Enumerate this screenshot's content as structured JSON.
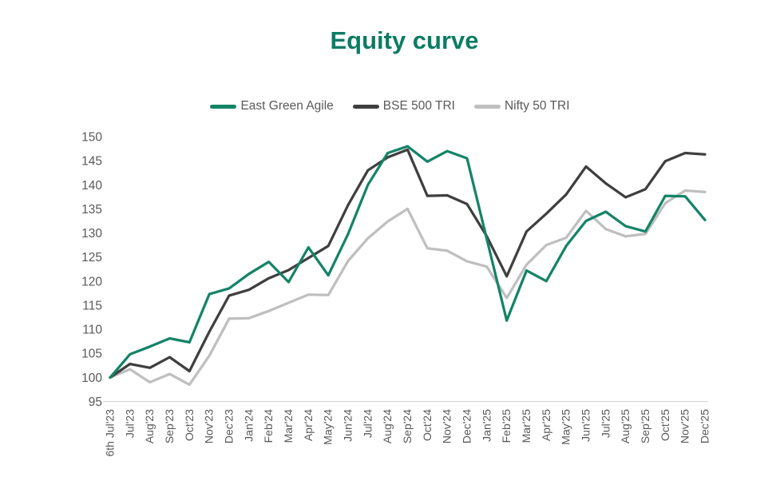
{
  "title": "Equity curve",
  "colors": {
    "title": "#0c7c64",
    "axis_text": "#595959",
    "axis_line": "#d9d9d9",
    "background": "#ffffff"
  },
  "chart_data": {
    "type": "line",
    "title": "Equity curve",
    "xlabel": "",
    "ylabel": "",
    "ylim": [
      95,
      150
    ],
    "y_ticks": [
      95,
      100,
      105,
      110,
      115,
      120,
      125,
      130,
      135,
      140,
      145,
      150
    ],
    "grid": false,
    "legend_position": "top",
    "x_labels": [
      "6th Jul'23",
      "Jul'23",
      "Aug'23",
      "Sep'23",
      "Oct'23",
      "Nov'23",
      "Dec'23",
      "Jan'24",
      "Feb'24",
      "Mar'24",
      "Apr'24",
      "May'24",
      "Jun'24",
      "Jul'24",
      "Aug'24",
      "Sep'24",
      "Oct'24",
      "Nov'24",
      "Dec'24",
      "Jan'25",
      "Feb'25",
      "Mar'25",
      "Apr'25",
      "May'25",
      "Jun'25",
      "Jul'25",
      "Aug'25",
      "Sep'25",
      "Oct'25",
      "Nov'25",
      "Dec'25"
    ],
    "series": [
      {
        "name": "East Green Agile",
        "color": "#148467",
        "values": [
          100,
          104.8,
          106.4,
          108.1,
          107.3,
          117.3,
          118.5,
          121.5,
          124.0,
          119.8,
          127.0,
          121.2,
          129.8,
          140.0,
          146.6,
          148.0,
          144.8,
          147.0,
          145.5,
          128.7,
          111.8,
          122.2,
          120.0,
          127.3,
          132.5,
          134.4,
          131.4,
          130.3,
          137.7,
          137.6,
          132.7
        ]
      },
      {
        "name": "BSE 500 TRI",
        "color": "#3f3f3f",
        "values": [
          100,
          102.8,
          102.0,
          104.2,
          101.3,
          109.5,
          117.0,
          118.2,
          120.6,
          122.3,
          124.8,
          127.3,
          135.8,
          143.0,
          145.7,
          147.3,
          137.7,
          137.8,
          136.0,
          129.3,
          121.0,
          130.3,
          134.0,
          138.0,
          143.8,
          140.3,
          137.4,
          139.1,
          144.9,
          146.6,
          146.3
        ]
      },
      {
        "name": "Nifty 50 TRI",
        "color": "#bfbfbf",
        "values": [
          100,
          101.7,
          99.0,
          100.7,
          98.5,
          104.5,
          112.2,
          112.3,
          113.8,
          115.5,
          117.2,
          117.1,
          124.2,
          128.9,
          132.4,
          135.0,
          126.8,
          126.3,
          124.1,
          123.0,
          116.5,
          123.4,
          127.5,
          129.0,
          134.6,
          130.8,
          129.3,
          129.8,
          136.2,
          138.8,
          138.5
        ]
      }
    ]
  }
}
